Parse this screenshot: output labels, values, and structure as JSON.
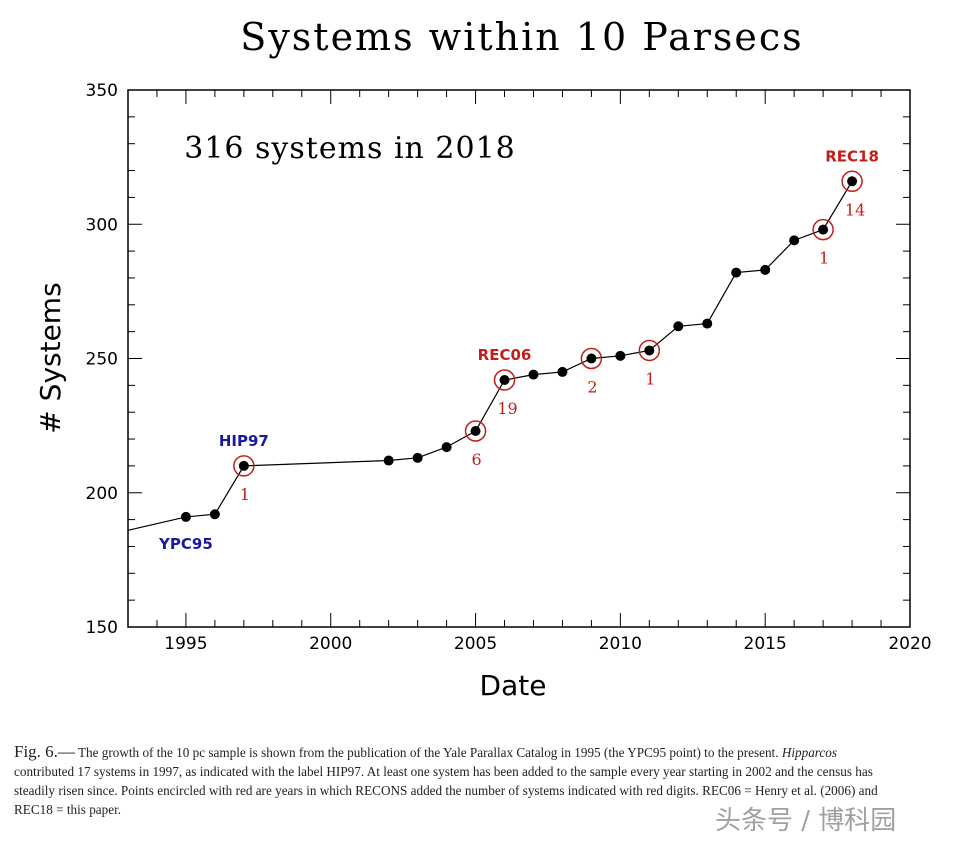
{
  "chart_data": {
    "type": "line",
    "title": "Systems within 10 Parsecs",
    "xlabel": "Date",
    "ylabel": "# Systems",
    "xlim": [
      1993,
      2020
    ],
    "ylim": [
      150,
      350
    ],
    "xticks": [
      1995,
      2000,
      2005,
      2010,
      2015,
      2020
    ],
    "yticks": [
      150,
      200,
      250,
      300,
      350
    ],
    "annotation": "316 systems in 2018",
    "line_start": {
      "x": 1993,
      "y": 186
    },
    "x": [
      1995,
      1996,
      1997,
      2002,
      2003,
      2004,
      2005,
      2006,
      2007,
      2008,
      2009,
      2010,
      2011,
      2012,
      2013,
      2014,
      2015,
      2016,
      2017,
      2018
    ],
    "y": [
      191,
      192,
      210,
      212,
      213,
      217,
      223,
      242,
      244,
      245,
      250,
      251,
      253,
      262,
      263,
      282,
      283,
      294,
      298,
      316
    ],
    "labels": [
      {
        "x": 1995,
        "text": "YPC95",
        "color": "#1a1aa0",
        "pos": "below"
      },
      {
        "x": 1997,
        "text": "HIP97",
        "color": "#1a1aa0",
        "pos": "above"
      },
      {
        "x": 2006,
        "text": "REC06",
        "color": "#c0201a",
        "pos": "above"
      },
      {
        "x": 2018,
        "text": "REC18",
        "color": "#c0201a",
        "pos": "above"
      }
    ],
    "circled": [
      {
        "x": 1997,
        "count": "1"
      },
      {
        "x": 2005,
        "count": "6"
      },
      {
        "x": 2006,
        "count": "19"
      },
      {
        "x": 2009,
        "count": "2"
      },
      {
        "x": 2011,
        "count": "1"
      },
      {
        "x": 2017,
        "count": "1"
      },
      {
        "x": 2018,
        "count": "14"
      }
    ],
    "circle_color": "#c0201a"
  },
  "caption": {
    "fig": "Fig. 6.—",
    "text": " The growth of the 10 pc sample is shown from the publication of the Yale Parallax Catalog in 1995 (the YPC95 point) to the present. ",
    "italic": "Hipparcos",
    "text2": " contributed 17 systems in 1997, as indicated with the label HIP97. At least one system has been added to the sample every year starting in 2002 and the census has steadily risen since. Points encircled with red are years in which RECONS added the number of systems indicated with red digits. REC06 = Henry et al. (2006) and REC18 = this paper."
  },
  "watermark": "头条号 / 博科园"
}
